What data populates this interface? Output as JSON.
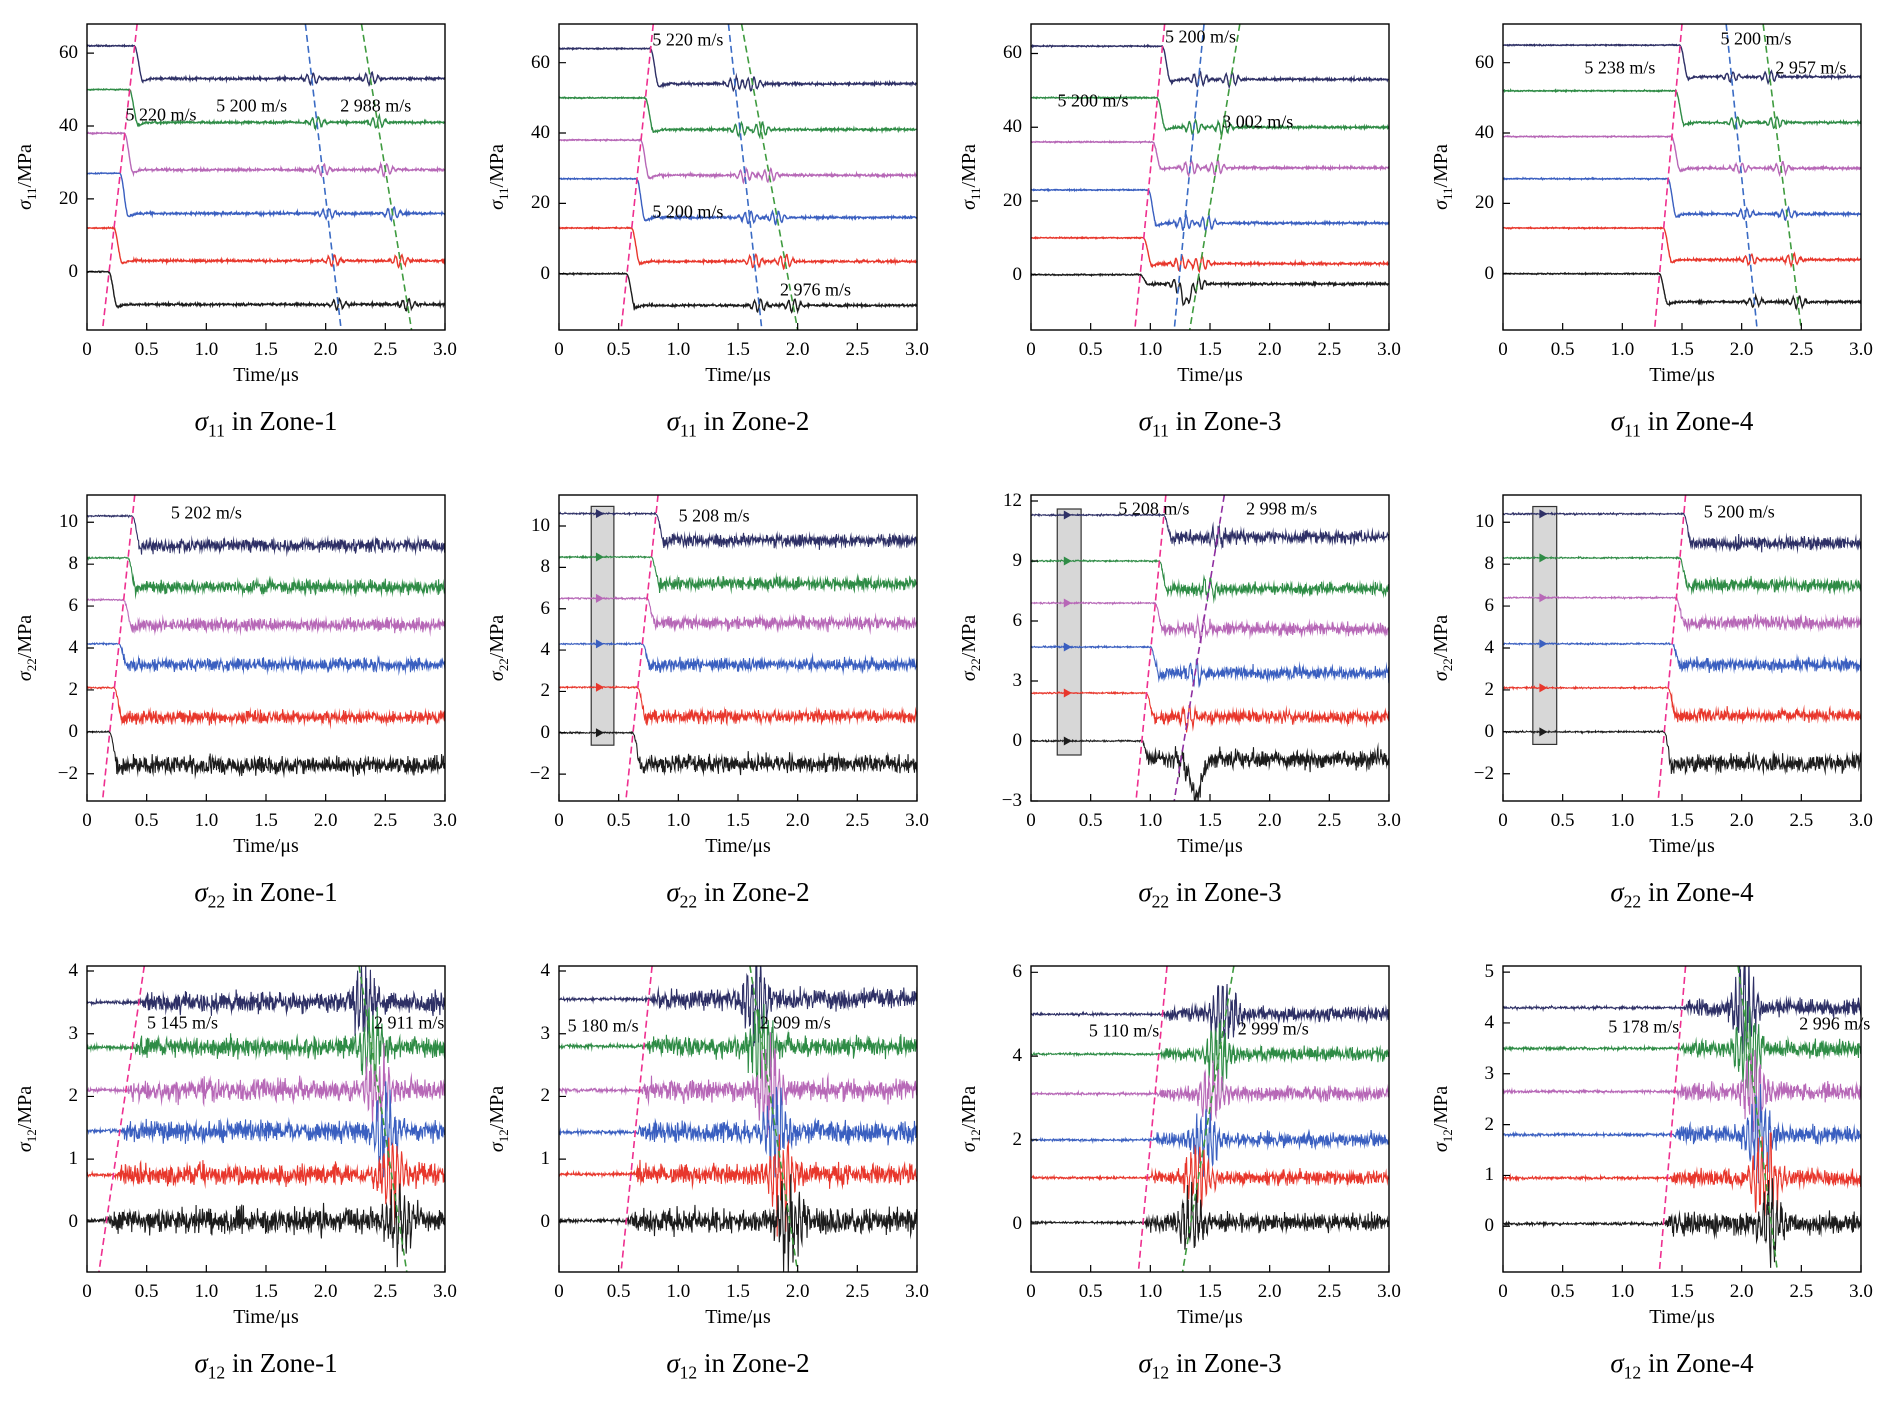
{
  "figure": {
    "columns": [
      "Zone-1",
      "Zone-2",
      "Zone-3",
      "Zone-4"
    ],
    "rows": [
      "sigma11",
      "sigma22",
      "sigma12"
    ]
  },
  "chart_data": {
    "type": "line",
    "xlabel": "Time/μs",
    "sigma": "σ",
    "unit": "/MPa",
    "xlim": [
      0,
      3
    ],
    "xticks": [
      {
        "v": 0,
        "l": "0"
      },
      {
        "v": 0.5,
        "l": "0.5"
      },
      {
        "v": 1.0,
        "l": "1.0"
      },
      {
        "v": 1.5,
        "l": "1.5"
      },
      {
        "v": 2.0,
        "l": "2.0"
      },
      {
        "v": 2.5,
        "l": "2.5"
      },
      {
        "v": 3.0,
        "l": "3.0"
      }
    ],
    "trace_colors": [
      "#2e3066",
      "#2f8c46",
      "#b768b7",
      "#3a5fc0",
      "#e8372c",
      "#1c1c1c"
    ],
    "dash_colors": {
      "pink": "#ee2f8f",
      "blue": "#3a6bc4",
      "green": "#3f9b3f",
      "purple": "#8f2fa0"
    },
    "box_style": {
      "fill": "rgba(140,140,140,0.35)",
      "edge": "#333333"
    },
    "subplots": [
      {
        "id": "s11-z1",
        "sub": "11",
        "zone": "Zone-1",
        "kind": "s11",
        "ylim": [
          -16,
          68
        ],
        "yticks": [
          {
            "v": 0,
            "l": "0"
          },
          {
            "v": 20,
            "l": "20"
          },
          {
            "v": 40,
            "l": "40"
          },
          {
            "v": 60,
            "l": "60"
          }
        ],
        "traces": [
          {
            "b": 62,
            "a": 53
          },
          {
            "b": 50,
            "a": 41
          },
          {
            "b": 38,
            "a": 28
          },
          {
            "b": 27,
            "a": 16
          },
          {
            "b": 12,
            "a": 3
          },
          {
            "b": 0,
            "a": -9
          }
        ],
        "lines": [
          {
            "c": "pink",
            "xt": 0.42,
            "xb": 0.13
          },
          {
            "c": "blue",
            "xt": 1.83,
            "xb": 2.13,
            "bump": 1.5
          },
          {
            "c": "green",
            "xt": 2.3,
            "xb": 2.72,
            "bump": 1.7
          }
        ],
        "ann": [
          {
            "t": "5 220 m/s",
            "x": 0.62,
            "y": 43
          },
          {
            "t": "5 200 m/s",
            "x": 1.38,
            "y": 45.5
          },
          {
            "t": "2 988 m/s",
            "x": 2.42,
            "y": 45.5
          }
        ]
      },
      {
        "id": "s11-z2",
        "sub": "11",
        "zone": "Zone-2",
        "kind": "s11",
        "ylim": [
          -16,
          71
        ],
        "yticks": [
          {
            "v": 0,
            "l": "0"
          },
          {
            "v": 20,
            "l": "20"
          },
          {
            "v": 40,
            "l": "40"
          },
          {
            "v": 60,
            "l": "60"
          }
        ],
        "traces": [
          {
            "b": 64,
            "a": 54
          },
          {
            "b": 50,
            "a": 41
          },
          {
            "b": 38,
            "a": 28
          },
          {
            "b": 27,
            "a": 16
          },
          {
            "b": 13,
            "a": 3.5
          },
          {
            "b": 0,
            "a": -9
          }
        ],
        "lines": [
          {
            "c": "pink",
            "xt": 0.79,
            "xb": 0.52
          },
          {
            "c": "blue",
            "xt": 1.42,
            "xb": 1.7,
            "bump": 1.9
          },
          {
            "c": "green",
            "xt": 1.53,
            "xb": 2.0,
            "bump": 2.0
          }
        ],
        "ann": [
          {
            "t": "5 220 m/s",
            "x": 1.08,
            "y": 66.5
          },
          {
            "t": "5 200 m/s",
            "x": 1.08,
            "y": 17.5
          },
          {
            "t": "2 976 m/s",
            "x": 2.15,
            "y": -4.5
          }
        ]
      },
      {
        "id": "s11-z3",
        "sub": "11",
        "zone": "Zone-3",
        "kind": "s11",
        "ylim": [
          -15,
          68
        ],
        "yticks": [
          {
            "v": 0,
            "l": "0"
          },
          {
            "v": 20,
            "l": "20"
          },
          {
            "v": 40,
            "l": "40"
          },
          {
            "v": 60,
            "l": "60"
          }
        ],
        "traces": [
          {
            "b": 62,
            "a": 53
          },
          {
            "b": 48,
            "a": 40
          },
          {
            "b": 36,
            "a": 29
          },
          {
            "b": 23,
            "a": 14
          },
          {
            "b": 10,
            "a": 3
          },
          {
            "b": 0,
            "a": -2.5,
            "dip": {
              "x": 1.3,
              "a": -5,
              "w": 0.05
            }
          }
        ],
        "lines": [
          {
            "c": "pink",
            "xt": 1.12,
            "xb": 0.87
          },
          {
            "c": "blue",
            "xt": 1.45,
            "xb": 1.2,
            "bump": 2.0
          },
          {
            "c": "green",
            "xt": 1.75,
            "xb": 1.33,
            "bump": 2.0
          }
        ],
        "ann": [
          {
            "t": "5 200 m/s",
            "x": 1.42,
            "y": 64.5
          },
          {
            "t": "5 200 m/s",
            "x": 0.52,
            "y": 47
          },
          {
            "t": "3 002 m/s",
            "x": 1.9,
            "y": 41.5
          }
        ]
      },
      {
        "id": "s11-z4",
        "sub": "11",
        "zone": "Zone-4",
        "kind": "s11",
        "ylim": [
          -16,
          71
        ],
        "yticks": [
          {
            "v": 0,
            "l": "0"
          },
          {
            "v": 20,
            "l": "20"
          },
          {
            "v": 40,
            "l": "40"
          },
          {
            "v": 60,
            "l": "60"
          }
        ],
        "traces": [
          {
            "b": 65,
            "a": 56
          },
          {
            "b": 52,
            "a": 43
          },
          {
            "b": 39,
            "a": 30
          },
          {
            "b": 27,
            "a": 17
          },
          {
            "b": 13,
            "a": 4
          },
          {
            "b": 0,
            "a": -8
          }
        ],
        "lines": [
          {
            "c": "pink",
            "xt": 1.5,
            "xb": 1.27
          },
          {
            "c": "blue",
            "xt": 1.87,
            "xb": 2.13,
            "bump": 1.5
          },
          {
            "c": "green",
            "xt": 2.18,
            "xb": 2.5,
            "bump": 1.7
          }
        ],
        "ann": [
          {
            "t": "5 238 m/s",
            "x": 0.98,
            "y": 58.5
          },
          {
            "t": "5 200 m/s",
            "x": 2.12,
            "y": 66.8
          },
          {
            "t": "2 957 m/s",
            "x": 2.58,
            "y": 58.5
          }
        ]
      },
      {
        "id": "s22-z1",
        "sub": "22",
        "zone": "Zone-1",
        "kind": "s22",
        "ylim": [
          -3.3,
          11.3
        ],
        "yticks": [
          {
            "v": -2,
            "l": "−2"
          },
          {
            "v": 0,
            "l": "0"
          },
          {
            "v": 2,
            "l": "2"
          },
          {
            "v": 4,
            "l": "4"
          },
          {
            "v": 6,
            "l": "6"
          },
          {
            "v": 8,
            "l": "8"
          },
          {
            "v": 10,
            "l": "10"
          }
        ],
        "traces": [
          {
            "b": 10.3,
            "a": 8.9
          },
          {
            "b": 8.3,
            "a": 6.9
          },
          {
            "b": 6.3,
            "a": 5.1
          },
          {
            "b": 4.2,
            "a": 3.2
          },
          {
            "b": 2.1,
            "a": 0.7
          },
          {
            "b": 0,
            "a": -1.6,
            "na": 0.4
          }
        ],
        "lines": [
          {
            "c": "pink",
            "xt": 0.4,
            "xb": 0.13
          }
        ],
        "ann": [
          {
            "t": "5 202 m/s",
            "x": 1.0,
            "y": 10.45
          }
        ]
      },
      {
        "id": "s22-z2",
        "sub": "22",
        "zone": "Zone-2",
        "kind": "s22",
        "ylim": [
          -3.3,
          11.5
        ],
        "yticks": [
          {
            "v": -2,
            "l": "−2"
          },
          {
            "v": 0,
            "l": "0"
          },
          {
            "v": 2,
            "l": "2"
          },
          {
            "v": 4,
            "l": "4"
          },
          {
            "v": 6,
            "l": "6"
          },
          {
            "v": 8,
            "l": "8"
          },
          {
            "v": 10,
            "l": "10"
          }
        ],
        "traces": [
          {
            "b": 10.6,
            "a": 9.3
          },
          {
            "b": 8.5,
            "a": 7.2
          },
          {
            "b": 6.5,
            "a": 5.3
          },
          {
            "b": 4.3,
            "a": 3.3
          },
          {
            "b": 2.2,
            "a": 0.8
          },
          {
            "b": 0,
            "a": -1.5,
            "na": 0.4
          }
        ],
        "lines": [
          {
            "c": "pink",
            "xt": 0.83,
            "xb": 0.56
          }
        ],
        "box": {
          "x1": 0.27,
          "x2": 0.46,
          "y1": -0.6,
          "y2": 10.95,
          "mx": 0.335
        },
        "ann": [
          {
            "t": "5 208 m/s",
            "x": 1.3,
            "y": 10.5
          }
        ]
      },
      {
        "id": "s22-z3",
        "sub": "22",
        "zone": "Zone-3",
        "kind": "s22",
        "ylim": [
          -3,
          12.3
        ],
        "yticks": [
          {
            "v": -3,
            "l": "−3"
          },
          {
            "v": 0,
            "l": "0"
          },
          {
            "v": 3,
            "l": "3"
          },
          {
            "v": 6,
            "l": "6"
          },
          {
            "v": 9,
            "l": "9"
          },
          {
            "v": 12,
            "l": "12"
          }
        ],
        "traces": [
          {
            "b": 11.3,
            "a": 10.2
          },
          {
            "b": 9,
            "a": 7.6
          },
          {
            "b": 6.9,
            "a": 5.6
          },
          {
            "b": 4.7,
            "a": 3.4
          },
          {
            "b": 2.4,
            "a": 1.2
          },
          {
            "b": 0,
            "a": -0.9,
            "na": 0.42,
            "dip": {
              "x": 1.38,
              "a": -1.9,
              "w": 0.07
            }
          }
        ],
        "lines": [
          {
            "c": "pink",
            "xt": 1.13,
            "xb": 0.88
          },
          {
            "c": "purple",
            "xt": 1.62,
            "xb": 1.2,
            "bump": 0.5
          }
        ],
        "box": {
          "x1": 0.22,
          "x2": 0.42,
          "y1": -0.7,
          "y2": 11.6,
          "mx": 0.3
        },
        "ann": [
          {
            "t": "5 208 m/s",
            "x": 1.03,
            "y": 11.6
          },
          {
            "t": "2 998 m/s",
            "x": 2.1,
            "y": 11.6
          }
        ]
      },
      {
        "id": "s22-z4",
        "sub": "22",
        "zone": "Zone-4",
        "kind": "s22",
        "ylim": [
          -3.3,
          11.3
        ],
        "yticks": [
          {
            "v": -2,
            "l": "−2"
          },
          {
            "v": 0,
            "l": "0"
          },
          {
            "v": 2,
            "l": "2"
          },
          {
            "v": 4,
            "l": "4"
          },
          {
            "v": 6,
            "l": "6"
          },
          {
            "v": 8,
            "l": "8"
          },
          {
            "v": 10,
            "l": "10"
          }
        ],
        "traces": [
          {
            "b": 10.4,
            "a": 9.0
          },
          {
            "b": 8.3,
            "a": 7.0
          },
          {
            "b": 6.4,
            "a": 5.2
          },
          {
            "b": 4.2,
            "a": 3.2
          },
          {
            "b": 2.1,
            "a": 0.8
          },
          {
            "b": 0,
            "a": -1.5,
            "na": 0.4
          }
        ],
        "lines": [
          {
            "c": "pink",
            "xt": 1.53,
            "xb": 1.3
          }
        ],
        "box": {
          "x1": 0.25,
          "x2": 0.45,
          "y1": -0.6,
          "y2": 10.75,
          "mx": 0.33
        },
        "ann": [
          {
            "t": "5 200 m/s",
            "x": 1.98,
            "y": 10.5
          }
        ]
      },
      {
        "id": "s12-z1",
        "sub": "12",
        "zone": "Zone-1",
        "kind": "s12",
        "ylim": [
          -0.8,
          4.08
        ],
        "yticks": [
          {
            "v": 0,
            "l": "0"
          },
          {
            "v": 1,
            "l": "1"
          },
          {
            "v": 2,
            "l": "2"
          },
          {
            "v": 3,
            "l": "3"
          },
          {
            "v": 4,
            "l": "4"
          }
        ],
        "traces": [
          {
            "b": 3.5
          },
          {
            "b": 2.78
          },
          {
            "b": 2.1
          },
          {
            "b": 1.45
          },
          {
            "b": 0.75
          },
          {
            "b": 0.02,
            "na": 0.18
          }
        ],
        "lines": [
          {
            "c": "pink",
            "xt": 0.48,
            "xb": 0.1
          },
          {
            "c": "green",
            "xt": 2.28,
            "xb": 2.68,
            "burst": 0.45
          }
        ],
        "ann": [
          {
            "t": "5 145 m/s",
            "x": 0.8,
            "y": 3.17
          },
          {
            "t": "2 911 m/s",
            "x": 2.7,
            "y": 3.17
          }
        ]
      },
      {
        "id": "s12-z2",
        "sub": "12",
        "zone": "Zone-2",
        "kind": "s12",
        "ylim": [
          -0.8,
          4.08
        ],
        "yticks": [
          {
            "v": 0,
            "l": "0"
          },
          {
            "v": 1,
            "l": "1"
          },
          {
            "v": 2,
            "l": "2"
          },
          {
            "v": 3,
            "l": "3"
          },
          {
            "v": 4,
            "l": "4"
          }
        ],
        "traces": [
          {
            "b": 3.55
          },
          {
            "b": 2.8
          },
          {
            "b": 2.1
          },
          {
            "b": 1.43
          },
          {
            "b": 0.76
          },
          {
            "b": 0.02,
            "na": 0.18
          }
        ],
        "lines": [
          {
            "c": "pink",
            "xt": 0.78,
            "xb": 0.52
          },
          {
            "c": "green",
            "xt": 1.6,
            "xb": 2.0,
            "burst": 0.5
          }
        ],
        "ann": [
          {
            "t": "5 180 m/s",
            "x": 0.37,
            "y": 3.13
          },
          {
            "t": "2 909 m/s",
            "x": 1.98,
            "y": 3.17
          }
        ]
      },
      {
        "id": "s12-z3",
        "sub": "12",
        "zone": "Zone-3",
        "kind": "s12",
        "ylim": [
          -1.15,
          6.15
        ],
        "yticks": [
          {
            "v": 0,
            "l": "0"
          },
          {
            "v": 2,
            "l": "2"
          },
          {
            "v": 4,
            "l": "4"
          },
          {
            "v": 6,
            "l": "6"
          }
        ],
        "traces": [
          {
            "b": 5.0
          },
          {
            "b": 4.05
          },
          {
            "b": 3.1
          },
          {
            "b": 2.0
          },
          {
            "b": 1.1
          },
          {
            "b": 0.03,
            "na": 0.2
          }
        ],
        "lines": [
          {
            "c": "pink",
            "xt": 1.14,
            "xb": 0.9
          },
          {
            "c": "green",
            "xt": 1.7,
            "xb": 1.27,
            "burst": 0.55
          }
        ],
        "ann": [
          {
            "t": "5 110 m/s",
            "x": 0.78,
            "y": 4.6
          },
          {
            "t": "2 999 m/s",
            "x": 2.03,
            "y": 4.65
          }
        ]
      },
      {
        "id": "s12-z4",
        "sub": "12",
        "zone": "Zone-4",
        "kind": "s12",
        "ylim": [
          -0.9,
          5.12
        ],
        "yticks": [
          {
            "v": 0,
            "l": "0"
          },
          {
            "v": 1,
            "l": "1"
          },
          {
            "v": 2,
            "l": "2"
          },
          {
            "v": 3,
            "l": "3"
          },
          {
            "v": 4,
            "l": "4"
          },
          {
            "v": 5,
            "l": "5"
          }
        ],
        "traces": [
          {
            "b": 4.3
          },
          {
            "b": 3.5
          },
          {
            "b": 2.65
          },
          {
            "b": 1.8
          },
          {
            "b": 0.95
          },
          {
            "b": 0.05,
            "na": 0.18
          }
        ],
        "lines": [
          {
            "c": "pink",
            "xt": 1.53,
            "xb": 1.31
          },
          {
            "c": "green",
            "xt": 1.97,
            "xb": 2.3,
            "burst": 0.65
          }
        ],
        "ann": [
          {
            "t": "5 178 m/s",
            "x": 1.18,
            "y": 3.92
          },
          {
            "t": "2 996 m/s",
            "x": 2.78,
            "y": 3.97
          }
        ]
      }
    ]
  }
}
